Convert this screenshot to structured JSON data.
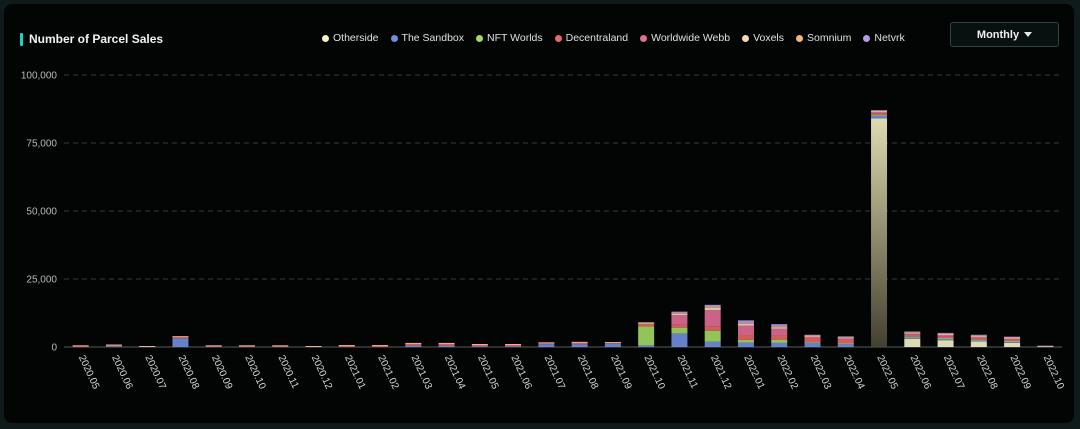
{
  "header": {
    "title": "Number of Parcel Sales",
    "period_button": "Monthly"
  },
  "colors": {
    "accent": "#19d3c5",
    "Otherside": "#f6f2c4",
    "The Sandbox": "#6f8fe0",
    "NFT Worlds": "#a3d960",
    "Decentraland": "#e86868",
    "Worldwide Webb": "#e06e96",
    "Voxels": "#f3d7b8",
    "Somnium": "#f2b878",
    "Netvrk": "#b79ae8"
  },
  "chart_data": {
    "type": "bar",
    "stacked": true,
    "title": "Number of Parcel Sales",
    "xlabel": "",
    "ylabel": "",
    "ylim": [
      0,
      100000
    ],
    "yticks": [
      0,
      25000,
      50000,
      75000,
      100000
    ],
    "ytick_labels": [
      "0",
      "25,000",
      "50,000",
      "75,000",
      "100,000"
    ],
    "grid": true,
    "legend_position": "top",
    "categories": [
      "2020.05",
      "2020.06",
      "2020.07",
      "2020.08",
      "2020.09",
      "2020.10",
      "2020.11",
      "2020.12",
      "2021.01",
      "2021.02",
      "2021.03",
      "2021.04",
      "2021.05",
      "2021.06",
      "2021.07",
      "2021.08",
      "2021.09",
      "2021.10",
      "2021.11",
      "2021.12",
      "2022.01",
      "2022.02",
      "2022.03",
      "2022.04",
      "2022.05",
      "2022.06",
      "2022.07",
      "2022.08",
      "2022.09",
      "2022.10"
    ],
    "series": [
      {
        "name": "Otherside",
        "values": [
          0,
          0,
          0,
          0,
          0,
          0,
          0,
          0,
          0,
          0,
          0,
          0,
          0,
          0,
          0,
          0,
          0,
          0,
          0,
          0,
          0,
          0,
          0,
          0,
          84000,
          3000,
          2500,
          2000,
          1500,
          0
        ]
      },
      {
        "name": "The Sandbox",
        "values": [
          0,
          300,
          0,
          3200,
          0,
          0,
          0,
          0,
          0,
          0,
          500,
          500,
          300,
          300,
          1000,
          1000,
          1200,
          600,
          5000,
          2000,
          1600,
          1500,
          1500,
          1000,
          1000,
          600,
          600,
          500,
          500,
          200
        ]
      },
      {
        "name": "NFT Worlds",
        "values": [
          0,
          0,
          0,
          0,
          0,
          0,
          0,
          0,
          0,
          0,
          0,
          0,
          0,
          0,
          0,
          0,
          0,
          7000,
          2000,
          4000,
          1000,
          1200,
          300,
          300,
          300,
          200,
          200,
          200,
          200,
          0
        ]
      },
      {
        "name": "Decentraland",
        "values": [
          500,
          500,
          300,
          700,
          500,
          500,
          500,
          300,
          600,
          600,
          900,
          900,
          700,
          700,
          600,
          800,
          500,
          900,
          1200,
          1600,
          1800,
          1500,
          1500,
          1300,
          600,
          700,
          700,
          600,
          600,
          200
        ]
      },
      {
        "name": "Worldwide Webb",
        "values": [
          0,
          0,
          0,
          0,
          0,
          0,
          0,
          0,
          0,
          0,
          0,
          0,
          0,
          0,
          0,
          0,
          0,
          0,
          3500,
          6000,
          3500,
          2500,
          600,
          700,
          400,
          400,
          400,
          400,
          400,
          0
        ]
      },
      {
        "name": "Voxels",
        "values": [
          100,
          100,
          50,
          50,
          100,
          100,
          100,
          50,
          100,
          100,
          100,
          100,
          100,
          100,
          100,
          100,
          100,
          300,
          500,
          800,
          600,
          600,
          200,
          200,
          300,
          300,
          300,
          300,
          200,
          50
        ]
      },
      {
        "name": "Somnium",
        "values": [
          0,
          0,
          0,
          0,
          0,
          0,
          0,
          0,
          0,
          0,
          0,
          0,
          0,
          0,
          0,
          0,
          0,
          300,
          300,
          500,
          300,
          300,
          100,
          100,
          200,
          200,
          200,
          200,
          100,
          0
        ]
      },
      {
        "name": "Netvrk",
        "values": [
          0,
          0,
          0,
          0,
          0,
          0,
          0,
          0,
          0,
          0,
          0,
          0,
          0,
          0,
          0,
          0,
          0,
          0,
          500,
          600,
          1000,
          800,
          300,
          300,
          300,
          300,
          300,
          300,
          300,
          0
        ]
      }
    ]
  }
}
